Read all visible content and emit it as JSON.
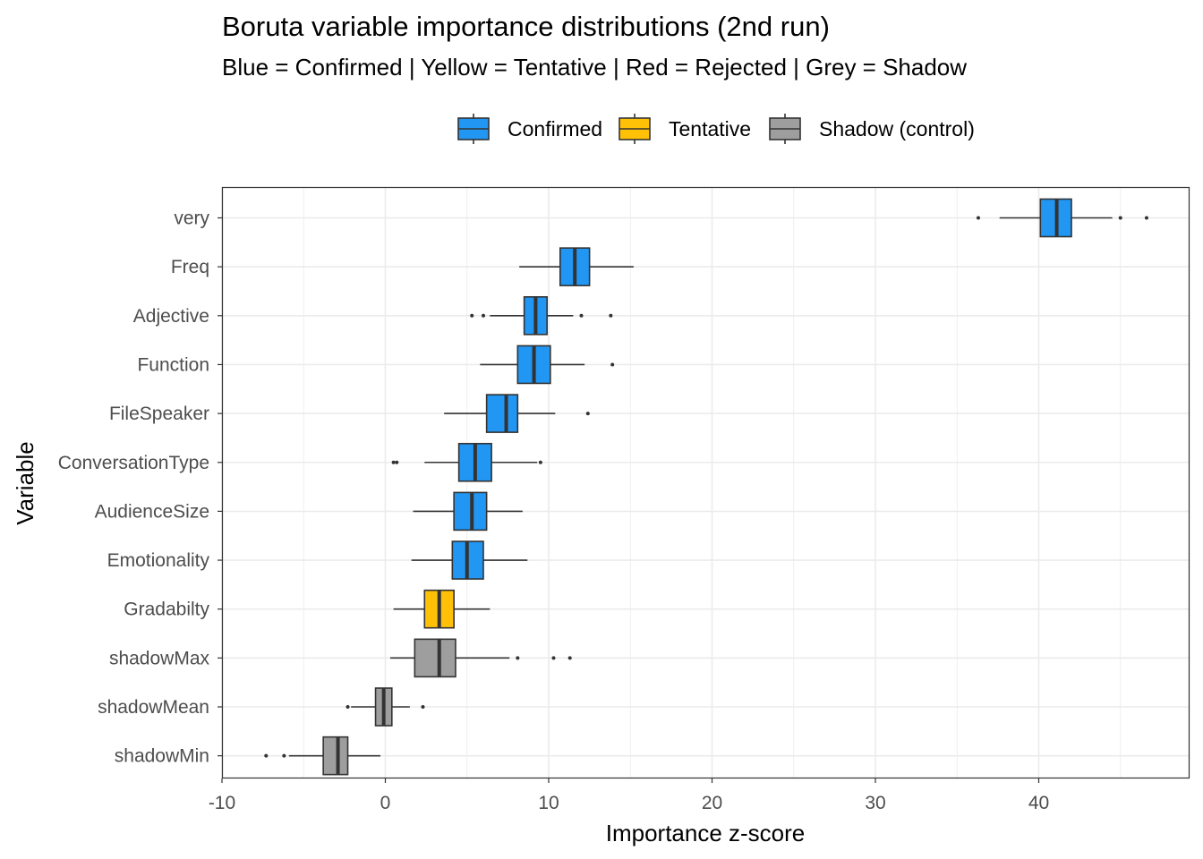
{
  "chart_data": {
    "type": "boxplot",
    "orientation": "horizontal",
    "title": "Boruta variable importance distributions (2nd run)",
    "subtitle": "Blue = Confirmed | Yellow = Tentative | Red = Rejected | Grey = Shadow",
    "xlabel": "Importance z-score",
    "ylabel": "Variable",
    "xlim": [
      -10,
      46.9
    ],
    "x_ticks": [
      -10,
      0,
      10,
      20,
      30,
      40
    ],
    "x_tick_labels": [
      "-10",
      "0",
      "10",
      "20",
      "30",
      "40"
    ],
    "grid": true,
    "legend": {
      "position": "top",
      "entries": [
        {
          "label": "Confirmed",
          "color": "#2196F3"
        },
        {
          "label": "Tentative",
          "color": "#FFC107"
        },
        {
          "label": "Shadow (control)",
          "color": "#9E9E9E"
        }
      ]
    },
    "categories": [
      "very",
      "Freq",
      "Adjective",
      "Function",
      "FileSpeaker",
      "ConversationType",
      "AudienceSize",
      "Emotionality",
      "Gradabilty",
      "shadowMax",
      "shadowMean",
      "shadowMin"
    ],
    "series": [
      {
        "name": "very",
        "group": "Confirmed",
        "whisker_low": 37.6,
        "q1": 40.1,
        "median": 41.1,
        "q3": 42.0,
        "whisker_high": 44.5,
        "outliers": [
          36.3,
          45.0,
          46.6
        ]
      },
      {
        "name": "Freq",
        "group": "Confirmed",
        "whisker_low": 8.2,
        "q1": 10.7,
        "median": 11.6,
        "q3": 12.5,
        "whisker_high": 15.2,
        "outliers": []
      },
      {
        "name": "Adjective",
        "group": "Confirmed",
        "whisker_low": 6.4,
        "q1": 8.5,
        "median": 9.2,
        "q3": 9.9,
        "whisker_high": 11.5,
        "outliers": [
          5.3,
          6.0,
          12.0,
          13.8
        ]
      },
      {
        "name": "Function",
        "group": "Confirmed",
        "whisker_low": 5.8,
        "q1": 8.1,
        "median": 9.1,
        "q3": 10.1,
        "whisker_high": 12.2,
        "outliers": [
          13.9
        ]
      },
      {
        "name": "FileSpeaker",
        "group": "Confirmed",
        "whisker_low": 3.6,
        "q1": 6.2,
        "median": 7.4,
        "q3": 8.1,
        "whisker_high": 10.4,
        "outliers": [
          12.4
        ]
      },
      {
        "name": "ConversationType",
        "group": "Confirmed",
        "whisker_low": 2.4,
        "q1": 4.5,
        "median": 5.5,
        "q3": 6.5,
        "whisker_high": 9.3,
        "outliers": [
          0.5,
          0.7,
          9.5
        ]
      },
      {
        "name": "AudienceSize",
        "group": "Confirmed",
        "whisker_low": 1.7,
        "q1": 4.2,
        "median": 5.3,
        "q3": 6.2,
        "whisker_high": 8.4,
        "outliers": []
      },
      {
        "name": "Emotionality",
        "group": "Confirmed",
        "whisker_low": 1.6,
        "q1": 4.1,
        "median": 5.0,
        "q3": 6.0,
        "whisker_high": 8.7,
        "outliers": []
      },
      {
        "name": "Gradabilty",
        "group": "Tentative",
        "whisker_low": 0.5,
        "q1": 2.4,
        "median": 3.3,
        "q3": 4.2,
        "whisker_high": 6.4,
        "outliers": []
      },
      {
        "name": "shadowMax",
        "group": "Shadow (control)",
        "whisker_low": 0.3,
        "q1": 1.8,
        "median": 3.3,
        "q3": 4.3,
        "whisker_high": 7.6,
        "outliers": [
          8.1,
          10.3,
          11.3
        ]
      },
      {
        "name": "shadowMean",
        "group": "Shadow (control)",
        "whisker_low": -2.1,
        "q1": -0.6,
        "median": -0.1,
        "q3": 0.4,
        "whisker_high": 1.5,
        "outliers": [
          -2.3,
          2.3
        ]
      },
      {
        "name": "shadowMin",
        "group": "Shadow (control)",
        "whisker_low": -5.9,
        "q1": -3.8,
        "median": -2.9,
        "q3": -2.3,
        "whisker_high": -0.3,
        "outliers": [
          -7.3,
          -6.2
        ]
      }
    ]
  },
  "colors": {
    "confirmed": "#2196F3",
    "tentative": "#FFC107",
    "shadow": "#9E9E9E",
    "outline": "#333333",
    "grid": "#EBEBEB"
  }
}
